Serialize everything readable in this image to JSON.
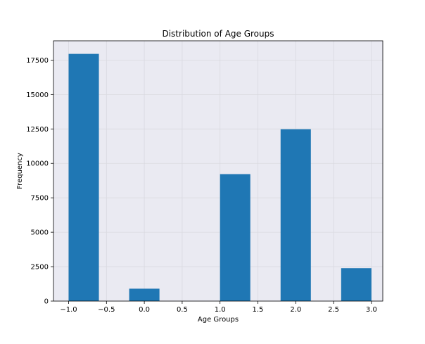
{
  "chart_data": {
    "type": "bar",
    "title": "Distribution of Age Groups",
    "xlabel": "Age Groups",
    "ylabel": "Frequency",
    "xlim": [
      -1.2,
      3.15
    ],
    "ylim": [
      0,
      18900
    ],
    "bars": [
      {
        "x0": -1.0,
        "x1": -0.6,
        "value": 17950
      },
      {
        "x0": -0.2,
        "x1": 0.2,
        "value": 900
      },
      {
        "x0": 1.0,
        "x1": 1.4,
        "value": 9220
      },
      {
        "x0": 1.8,
        "x1": 2.2,
        "value": 12480
      },
      {
        "x0": 2.6,
        "x1": 3.0,
        "value": 2390
      }
    ],
    "x_ticks": [
      -1.0,
      -0.5,
      0.0,
      0.5,
      1.0,
      1.5,
      2.0,
      2.5,
      3.0
    ],
    "x_tick_labels": [
      "−1.0",
      "−0.5",
      "0.0",
      "0.5",
      "1.0",
      "1.5",
      "2.0",
      "2.5",
      "3.0"
    ],
    "y_ticks": [
      0,
      2500,
      5000,
      7500,
      10000,
      12500,
      15000,
      17500
    ],
    "y_tick_labels": [
      "0",
      "2500",
      "5000",
      "7500",
      "10000",
      "12500",
      "15000",
      "17500"
    ],
    "grid": true,
    "colors": {
      "bar": "#1f77b4",
      "plot_background": "#eaeaf2",
      "grid": "#d9d9e0"
    }
  }
}
